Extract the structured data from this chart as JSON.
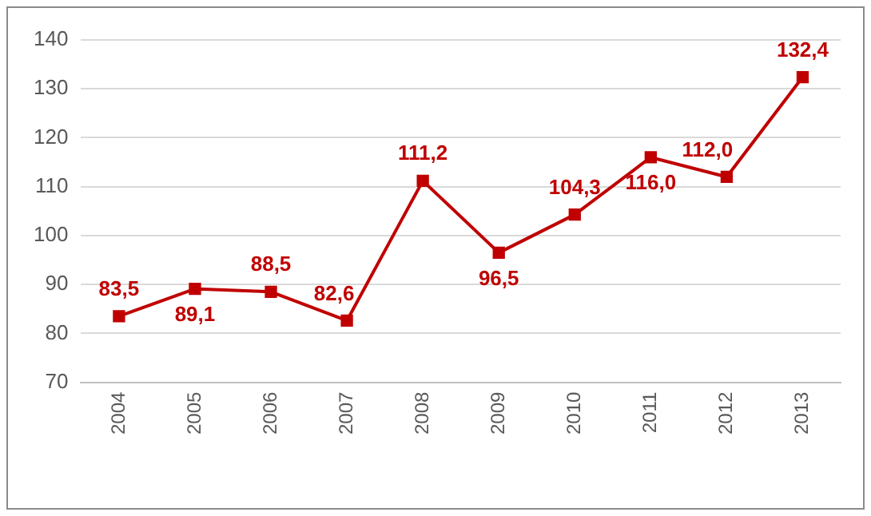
{
  "chart_data": {
    "type": "line",
    "categories": [
      "2004",
      "2005",
      "2006",
      "2007",
      "2008",
      "2009",
      "2010",
      "2011",
      "2012",
      "2013"
    ],
    "values": [
      83.5,
      89.1,
      88.5,
      82.6,
      111.2,
      96.5,
      104.3,
      116.0,
      112.0,
      132.4
    ],
    "value_labels": [
      "83,5",
      "89,1",
      "88,5",
      "82,6",
      "111,2",
      "96,5",
      "104,3",
      "116,0",
      "112,0",
      "132,4"
    ],
    "color": "#c00000",
    "marker": "square",
    "line_style": "solid",
    "ylim": [
      70,
      140
    ],
    "yticks": [
      70,
      80,
      90,
      100,
      110,
      120,
      130,
      140
    ],
    "grid": "y",
    "legend": false
  }
}
